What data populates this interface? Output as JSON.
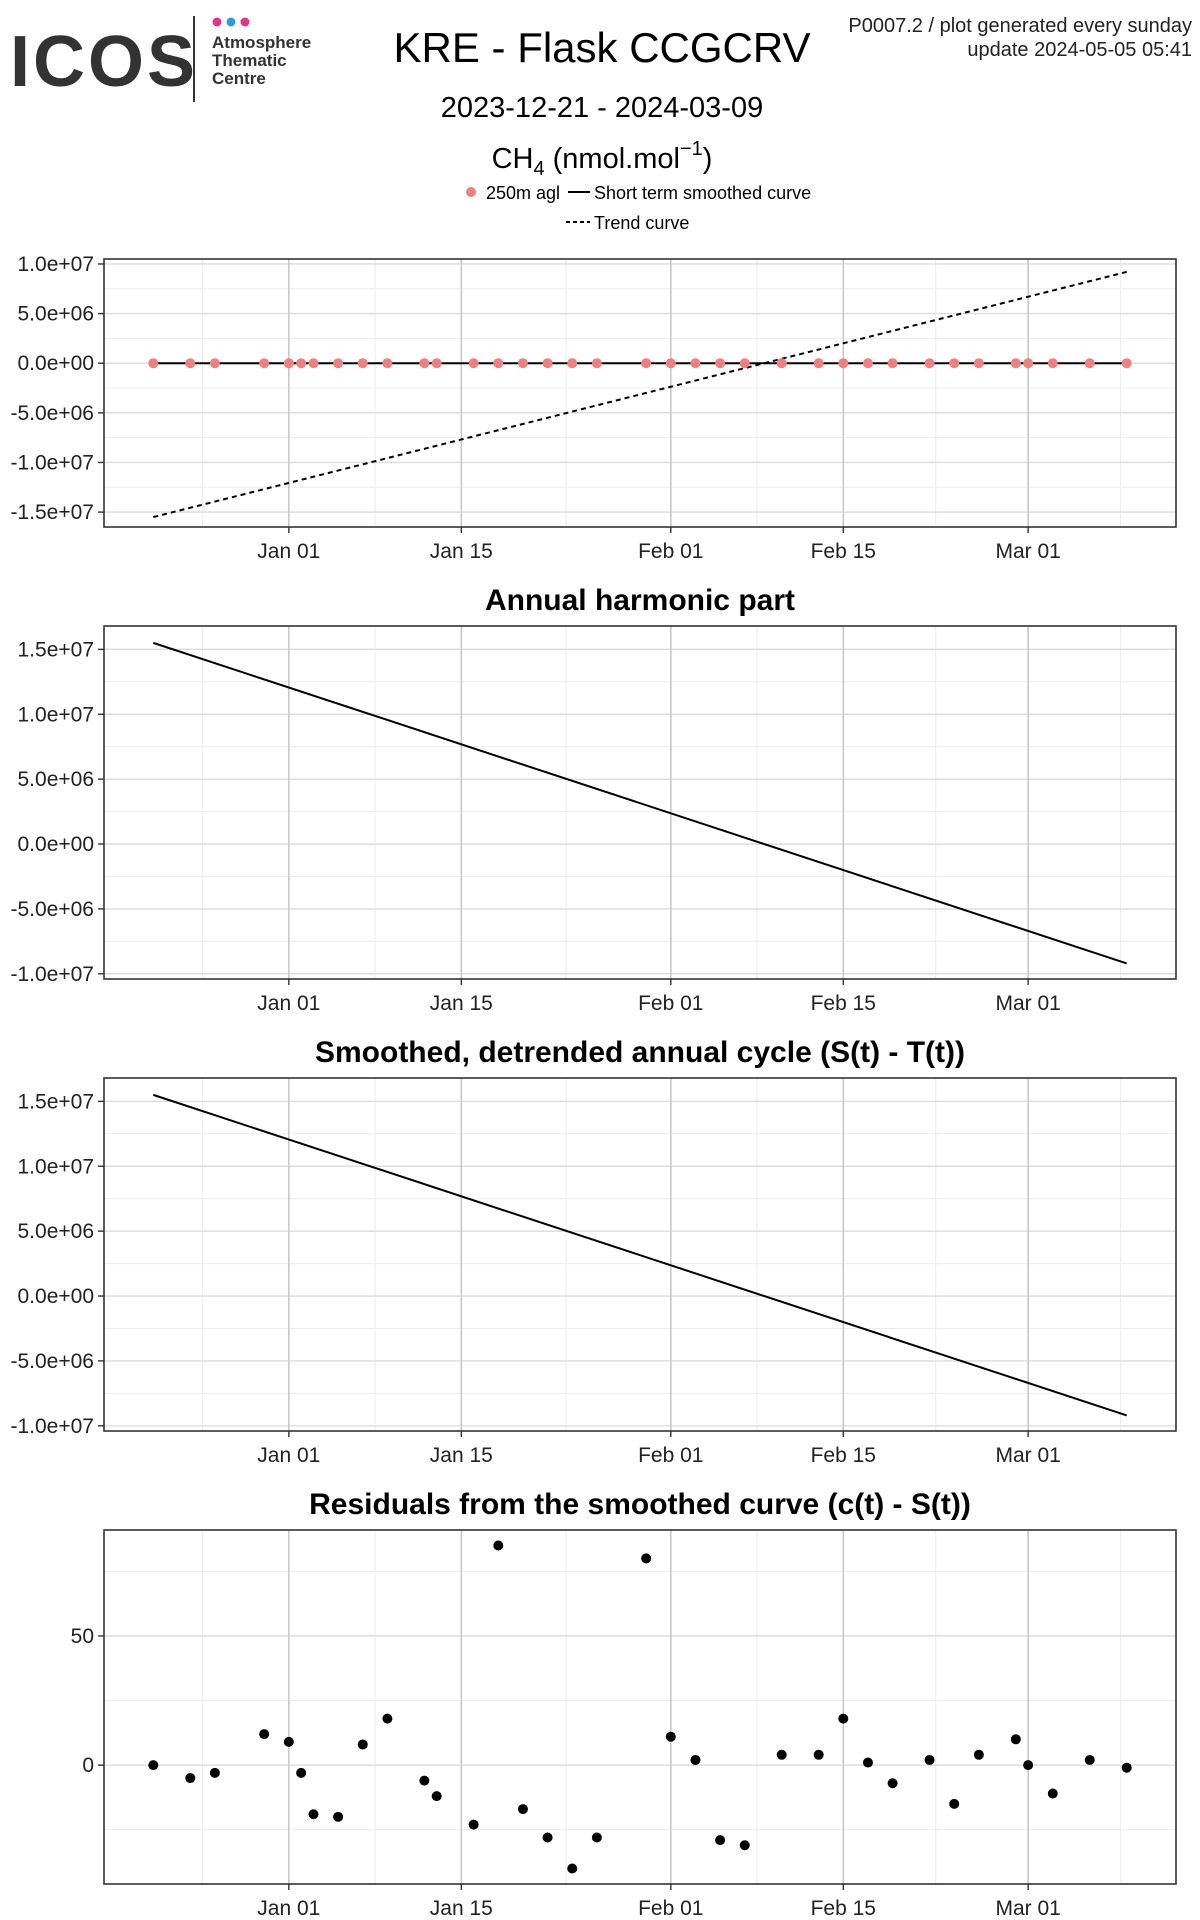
{
  "logo": {
    "wordmark": "ICOS",
    "line1": "Atmosphere",
    "line2": "Thematic",
    "line3": "Centre",
    "dot_colors": [
      "#e8318a",
      "#2c9ddb",
      "#e8318a"
    ],
    "text_color": "#333333"
  },
  "header": {
    "title": "KRE - Flask CCGCRV",
    "date_range": "2023-12-21 - 2024-03-09",
    "species_main": "CH",
    "species_sub": "4",
    "unit_main": " (nmol.mol",
    "unit_sup": "−1",
    "unit_close": ")",
    "product_note": "P0007.2 / plot generated every sunday",
    "update_note": "update  2024-05-05 05:41"
  },
  "legend": {
    "points_label": "250m agl",
    "smooth_label": "Short term smoothed curve",
    "trend_label": "Trend curve",
    "point_color": "#f07f7f"
  },
  "x_axis": {
    "ticks": [
      {
        "label": "Jan 01",
        "date": "2024-01-01"
      },
      {
        "label": "Jan 15",
        "date": "2024-01-15"
      },
      {
        "label": "Feb 01",
        "date": "2024-02-01"
      },
      {
        "label": "Feb 15",
        "date": "2024-02-15"
      },
      {
        "label": "Mar 01",
        "date": "2024-03-01"
      }
    ],
    "range": [
      "2023-12-17",
      "2024-03-13"
    ]
  },
  "chart_data": [
    {
      "type": "line",
      "title": "",
      "xlabel": "",
      "ylabel": "",
      "ylim": [
        -16500000,
        10500000
      ],
      "grid": true,
      "y_ticks": [
        {
          "label": "1.0e+07",
          "value": 10000000
        },
        {
          "label": "5.0e+06",
          "value": 5000000
        },
        {
          "label": "0.0e+00",
          "value": 0
        },
        {
          "label": "-5.0e+06",
          "value": -5000000
        },
        {
          "label": "-1.0e+07",
          "value": -10000000
        },
        {
          "label": "-1.5e+07",
          "value": -15000000
        }
      ],
      "series": [
        {
          "name": "250m agl",
          "style": "points",
          "color": "#f07f7f",
          "x": [
            "2023-12-21",
            "2023-12-24",
            "2023-12-26",
            "2023-12-30",
            "2024-01-01",
            "2024-01-02",
            "2024-01-03",
            "2024-01-05",
            "2024-01-07",
            "2024-01-09",
            "2024-01-12",
            "2024-01-13",
            "2024-01-16",
            "2024-01-18",
            "2024-01-20",
            "2024-01-22",
            "2024-01-24",
            "2024-01-26",
            "2024-01-30",
            "2024-02-01",
            "2024-02-03",
            "2024-02-05",
            "2024-02-07",
            "2024-02-10",
            "2024-02-13",
            "2024-02-15",
            "2024-02-17",
            "2024-02-19",
            "2024-02-22",
            "2024-02-24",
            "2024-02-26",
            "2024-02-29",
            "2024-03-01",
            "2024-03-03",
            "2024-03-06",
            "2024-03-09"
          ],
          "y": [
            0,
            0,
            0,
            0,
            0,
            0,
            0,
            0,
            0,
            0,
            0,
            0,
            0,
            0,
            0,
            0,
            0,
            0,
            0,
            0,
            0,
            0,
            0,
            0,
            0,
            0,
            0,
            0,
            0,
            0,
            0,
            0,
            0,
            0,
            0,
            0
          ]
        },
        {
          "name": "Short term smoothed curve",
          "style": "solid",
          "color": "#000000",
          "x": [
            "2023-12-21",
            "2024-03-09"
          ],
          "y": [
            0,
            0
          ]
        },
        {
          "name": "Trend curve",
          "style": "dashed",
          "color": "#000000",
          "x": [
            "2023-12-21",
            "2024-03-09"
          ],
          "y": [
            -15500000,
            9200000
          ]
        }
      ]
    },
    {
      "type": "line",
      "title": "Annual harmonic part",
      "xlabel": "",
      "ylabel": "",
      "ylim": [
        -10400000,
        16800000
      ],
      "grid": true,
      "y_ticks": [
        {
          "label": "1.5e+07",
          "value": 15000000
        },
        {
          "label": "1.0e+07",
          "value": 10000000
        },
        {
          "label": "5.0e+06",
          "value": 5000000
        },
        {
          "label": "0.0e+00",
          "value": 0
        },
        {
          "label": "-5.0e+06",
          "value": -5000000
        },
        {
          "label": "-1.0e+07",
          "value": -10000000
        }
      ],
      "series": [
        {
          "style": "solid",
          "color": "#000000",
          "x": [
            "2023-12-21",
            "2024-03-09"
          ],
          "y": [
            15500000,
            -9200000
          ]
        }
      ]
    },
    {
      "type": "line",
      "title": "Smoothed, detrended annual cycle (S(t) - T(t))",
      "xlabel": "",
      "ylabel": "",
      "ylim": [
        -10400000,
        16800000
      ],
      "grid": true,
      "y_ticks": [
        {
          "label": "1.5e+07",
          "value": 15000000
        },
        {
          "label": "1.0e+07",
          "value": 10000000
        },
        {
          "label": "5.0e+06",
          "value": 5000000
        },
        {
          "label": "0.0e+00",
          "value": 0
        },
        {
          "label": "-5.0e+06",
          "value": -5000000
        },
        {
          "label": "-1.0e+07",
          "value": -10000000
        }
      ],
      "series": [
        {
          "style": "solid",
          "color": "#000000",
          "x": [
            "2023-12-21",
            "2024-03-09"
          ],
          "y": [
            15500000,
            -9200000
          ]
        }
      ]
    },
    {
      "type": "scatter",
      "title": "Residuals from the smoothed curve (c(t) - S(t))",
      "xlabel": "",
      "ylabel": "",
      "ylim": [
        -46,
        91
      ],
      "grid": true,
      "y_ticks": [
        {
          "label": "50",
          "value": 50
        },
        {
          "label": "0",
          "value": 0
        }
      ],
      "series": [
        {
          "style": "points",
          "color": "#000000",
          "x": [
            "2023-12-21",
            "2023-12-24",
            "2023-12-26",
            "2023-12-30",
            "2024-01-01",
            "2024-01-02",
            "2024-01-03",
            "2024-01-05",
            "2024-01-07",
            "2024-01-09",
            "2024-01-12",
            "2024-01-13",
            "2024-01-16",
            "2024-01-18",
            "2024-01-20",
            "2024-01-22",
            "2024-01-24",
            "2024-01-26",
            "2024-01-30",
            "2024-02-01",
            "2024-02-03",
            "2024-02-05",
            "2024-02-07",
            "2024-02-10",
            "2024-02-13",
            "2024-02-15",
            "2024-02-17",
            "2024-02-19",
            "2024-02-22",
            "2024-02-24",
            "2024-02-26",
            "2024-02-29",
            "2024-03-01",
            "2024-03-03",
            "2024-03-06",
            "2024-03-09"
          ],
          "y": [
            0,
            -5,
            -3,
            12,
            9,
            -3,
            -19,
            -20,
            8,
            18,
            -6,
            -12,
            -23,
            85,
            -17,
            -28,
            -40,
            -28,
            80,
            11,
            2,
            -29,
            -31,
            4,
            4,
            18,
            1,
            -7,
            2,
            -15,
            4,
            10,
            0,
            -11,
            2,
            -1
          ]
        }
      ]
    }
  ]
}
